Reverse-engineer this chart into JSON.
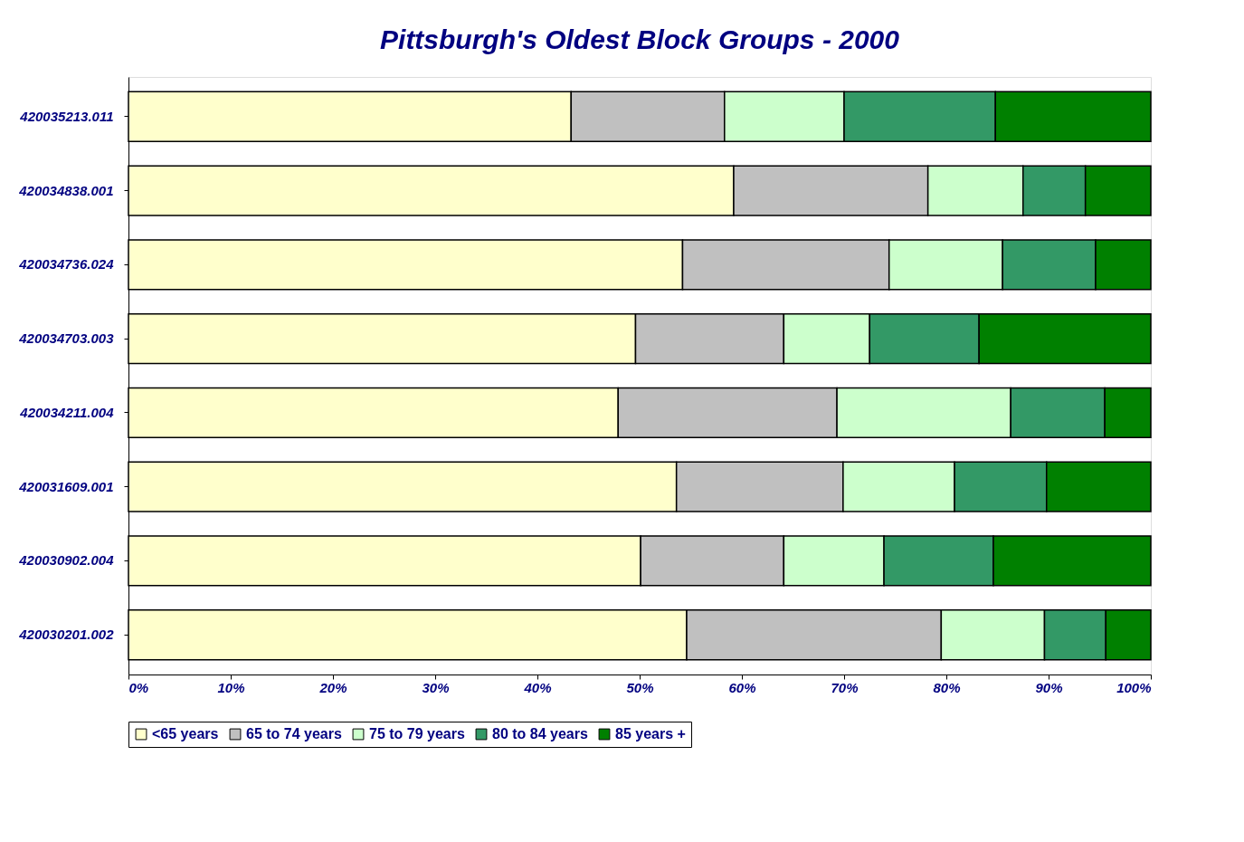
{
  "chart_data": {
    "type": "bar",
    "orientation": "horizontal",
    "stacked": true,
    "title": "Pittsburgh's Oldest Block Groups - 2000",
    "categories": [
      "420035213.011",
      "420034838.001",
      "420034736.024",
      "420034703.003",
      "420034211.004",
      "420031609.001",
      "420030902.004",
      "420030201.002"
    ],
    "series": [
      {
        "name": "<65 years",
        "color": "#ffffcc",
        "values": [
          43.3,
          59.2,
          54.2,
          49.6,
          47.9,
          53.6,
          50.1,
          54.6
        ]
      },
      {
        "name": "65 to 74 years",
        "color": "#c0c0c0",
        "values": [
          15.0,
          19.0,
          20.2,
          14.5,
          21.4,
          16.3,
          14.0,
          24.9
        ]
      },
      {
        "name": "75 to 79 years",
        "color": "#ccffcc",
        "values": [
          11.7,
          9.3,
          11.1,
          8.4,
          17.0,
          10.9,
          9.8,
          10.1
        ]
      },
      {
        "name": "80 to 84 years",
        "color": "#339966",
        "values": [
          14.8,
          6.1,
          9.1,
          10.7,
          9.2,
          9.0,
          10.7,
          6.0
        ]
      },
      {
        "name": "85 years +",
        "color": "#008000",
        "values": [
          15.2,
          6.4,
          5.4,
          16.8,
          4.5,
          10.2,
          15.4,
          4.4
        ]
      }
    ],
    "xlim": [
      0,
      100
    ],
    "xticks": [
      {
        "value": 0,
        "label": "0%"
      },
      {
        "value": 10,
        "label": "10%"
      },
      {
        "value": 20,
        "label": "20%"
      },
      {
        "value": 30,
        "label": "30%"
      },
      {
        "value": 40,
        "label": "40%"
      },
      {
        "value": 50,
        "label": "50%"
      },
      {
        "value": 60,
        "label": "60%"
      },
      {
        "value": 70,
        "label": "70%"
      },
      {
        "value": 80,
        "label": "80%"
      },
      {
        "value": 90,
        "label": "90%"
      },
      {
        "value": 100,
        "label": "100%"
      }
    ],
    "grid": false,
    "legend": "bottom"
  }
}
